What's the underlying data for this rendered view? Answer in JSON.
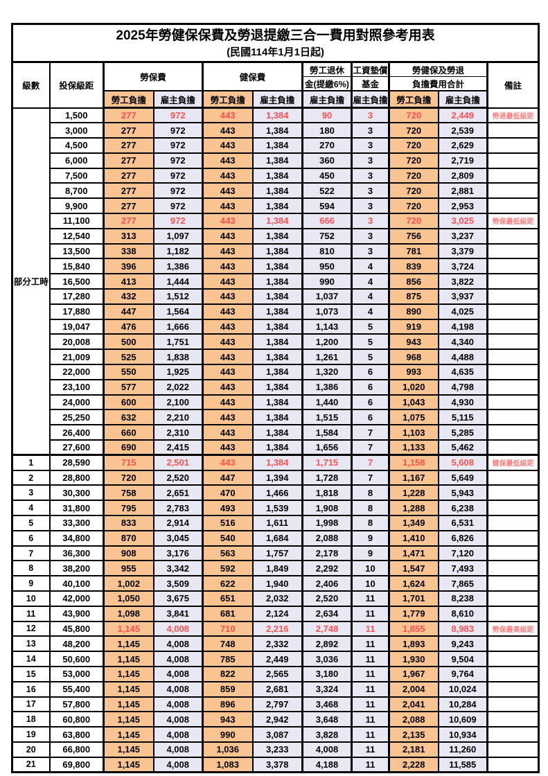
{
  "title": "2025年勞健保保費及勞退提繳三合一費用對照參考用表",
  "subtitle": "(民國114年1月1日起)",
  "header": {
    "level": "級數",
    "bracket": "投保級距",
    "labor_insurance": "勞保費",
    "health_insurance": "健保費",
    "pension_line1": "勞工退休",
    "pension_line2": "金(提繳6%)",
    "fund_line1": "工資墊償",
    "fund_line2": "基金",
    "total_line1": "勞健保及勞退",
    "total_line2": "負擔費用合計",
    "remark": "備註",
    "employee": "勞工負擔",
    "employer": "雇主負擔"
  },
  "colors": {
    "employee_bg": "#FAC492",
    "employer_bg": "#E8E8F5",
    "red_value": "#FF5050",
    "remark_red": "#FF8080",
    "border": "#000000"
  },
  "rows": [
    {
      "level": "部分工時",
      "level_rowspan": 23,
      "bracket": "1,500",
      "values": [
        "277",
        "972",
        "443",
        "1,384",
        "90",
        "3",
        "720",
        "2,449"
      ],
      "remark": "勞退最低級距",
      "red": true
    },
    {
      "bracket": "3,000",
      "values": [
        "277",
        "972",
        "443",
        "1,384",
        "180",
        "3",
        "720",
        "2,539"
      ]
    },
    {
      "bracket": "4,500",
      "values": [
        "277",
        "972",
        "443",
        "1,384",
        "270",
        "3",
        "720",
        "2,629"
      ]
    },
    {
      "bracket": "6,000",
      "values": [
        "277",
        "972",
        "443",
        "1,384",
        "360",
        "3",
        "720",
        "2,719"
      ]
    },
    {
      "bracket": "7,500",
      "values": [
        "277",
        "972",
        "443",
        "1,384",
        "450",
        "3",
        "720",
        "2,809"
      ]
    },
    {
      "bracket": "8,700",
      "values": [
        "277",
        "972",
        "443",
        "1,384",
        "522",
        "3",
        "720",
        "2,881"
      ]
    },
    {
      "bracket": "9,900",
      "values": [
        "277",
        "972",
        "443",
        "1,384",
        "594",
        "3",
        "720",
        "2,953"
      ]
    },
    {
      "bracket": "11,100",
      "values": [
        "277",
        "972",
        "443",
        "1,384",
        "666",
        "3",
        "720",
        "3,025"
      ],
      "remark": "勞保最低級距",
      "red": true
    },
    {
      "bracket": "12,540",
      "values": [
        "313",
        "1,097",
        "443",
        "1,384",
        "752",
        "3",
        "756",
        "3,237"
      ]
    },
    {
      "bracket": "13,500",
      "values": [
        "338",
        "1,182",
        "443",
        "1,384",
        "810",
        "3",
        "781",
        "3,379"
      ]
    },
    {
      "bracket": "15,840",
      "values": [
        "396",
        "1,386",
        "443",
        "1,384",
        "950",
        "4",
        "839",
        "3,724"
      ]
    },
    {
      "bracket": "16,500",
      "values": [
        "413",
        "1,444",
        "443",
        "1,384",
        "990",
        "4",
        "856",
        "3,822"
      ]
    },
    {
      "bracket": "17,280",
      "values": [
        "432",
        "1,512",
        "443",
        "1,384",
        "1,037",
        "4",
        "875",
        "3,937"
      ]
    },
    {
      "bracket": "17,880",
      "values": [
        "447",
        "1,564",
        "443",
        "1,384",
        "1,073",
        "4",
        "890",
        "4,025"
      ]
    },
    {
      "bracket": "19,047",
      "values": [
        "476",
        "1,666",
        "443",
        "1,384",
        "1,143",
        "5",
        "919",
        "4,198"
      ]
    },
    {
      "bracket": "20,008",
      "values": [
        "500",
        "1,751",
        "443",
        "1,384",
        "1,200",
        "5",
        "943",
        "4,340"
      ]
    },
    {
      "bracket": "21,009",
      "values": [
        "525",
        "1,838",
        "443",
        "1,384",
        "1,261",
        "5",
        "968",
        "4,488"
      ]
    },
    {
      "bracket": "22,000",
      "values": [
        "550",
        "1,925",
        "443",
        "1,384",
        "1,320",
        "6",
        "993",
        "4,635"
      ]
    },
    {
      "bracket": "23,100",
      "values": [
        "577",
        "2,022",
        "443",
        "1,384",
        "1,386",
        "6",
        "1,020",
        "4,798"
      ]
    },
    {
      "bracket": "24,000",
      "values": [
        "600",
        "2,100",
        "443",
        "1,384",
        "1,440",
        "6",
        "1,043",
        "4,930"
      ]
    },
    {
      "bracket": "25,250",
      "values": [
        "632",
        "2,210",
        "443",
        "1,384",
        "1,515",
        "6",
        "1,075",
        "5,115"
      ]
    },
    {
      "bracket": "26,400",
      "values": [
        "660",
        "2,310",
        "443",
        "1,384",
        "1,584",
        "7",
        "1,103",
        "5,285"
      ]
    },
    {
      "bracket": "27,600",
      "values": [
        "690",
        "2,415",
        "443",
        "1,384",
        "1,656",
        "7",
        "1,133",
        "5,462"
      ]
    },
    {
      "level": "1",
      "bracket": "28,590",
      "values": [
        "715",
        "2,501",
        "443",
        "1,384",
        "1,715",
        "7",
        "1,158",
        "5,608"
      ],
      "remark": "健保最低級距",
      "red": true,
      "group_start": true
    },
    {
      "level": "2",
      "bracket": "28,800",
      "values": [
        "720",
        "2,520",
        "447",
        "1,394",
        "1,728",
        "7",
        "1,167",
        "5,649"
      ]
    },
    {
      "level": "3",
      "bracket": "30,300",
      "values": [
        "758",
        "2,651",
        "470",
        "1,466",
        "1,818",
        "8",
        "1,228",
        "5,943"
      ]
    },
    {
      "level": "4",
      "bracket": "31,800",
      "values": [
        "795",
        "2,783",
        "493",
        "1,539",
        "1,908",
        "8",
        "1,288",
        "6,238"
      ]
    },
    {
      "level": "5",
      "bracket": "33,300",
      "values": [
        "833",
        "2,914",
        "516",
        "1,611",
        "1,998",
        "8",
        "1,349",
        "6,531"
      ]
    },
    {
      "level": "6",
      "bracket": "34,800",
      "values": [
        "870",
        "3,045",
        "540",
        "1,684",
        "2,088",
        "9",
        "1,410",
        "6,826"
      ]
    },
    {
      "level": "7",
      "bracket": "36,300",
      "values": [
        "908",
        "3,176",
        "563",
        "1,757",
        "2,178",
        "9",
        "1,471",
        "7,120"
      ]
    },
    {
      "level": "8",
      "bracket": "38,200",
      "values": [
        "955",
        "3,342",
        "592",
        "1,849",
        "2,292",
        "10",
        "1,547",
        "7,493"
      ]
    },
    {
      "level": "9",
      "bracket": "40,100",
      "values": [
        "1,002",
        "3,509",
        "622",
        "1,940",
        "2,406",
        "10",
        "1,624",
        "7,865"
      ]
    },
    {
      "level": "10",
      "bracket": "42,000",
      "values": [
        "1,050",
        "3,675",
        "651",
        "2,032",
        "2,520",
        "11",
        "1,701",
        "8,238"
      ]
    },
    {
      "level": "11",
      "bracket": "43,900",
      "values": [
        "1,098",
        "3,841",
        "681",
        "2,124",
        "2,634",
        "11",
        "1,779",
        "8,610"
      ]
    },
    {
      "level": "12",
      "bracket": "45,800",
      "values": [
        "1,145",
        "4,008",
        "710",
        "2,216",
        "2,748",
        "11",
        "1,855",
        "8,983"
      ],
      "remark": "勞保最高級距",
      "red": true
    },
    {
      "level": "13",
      "bracket": "48,200",
      "values": [
        "1,145",
        "4,008",
        "748",
        "2,332",
        "2,892",
        "11",
        "1,893",
        "9,243"
      ]
    },
    {
      "level": "14",
      "bracket": "50,600",
      "values": [
        "1,145",
        "4,008",
        "785",
        "2,449",
        "3,036",
        "11",
        "1,930",
        "9,504"
      ]
    },
    {
      "level": "15",
      "bracket": "53,000",
      "values": [
        "1,145",
        "4,008",
        "822",
        "2,565",
        "3,180",
        "11",
        "1,967",
        "9,764"
      ]
    },
    {
      "level": "16",
      "bracket": "55,400",
      "values": [
        "1,145",
        "4,008",
        "859",
        "2,681",
        "3,324",
        "11",
        "2,004",
        "10,024"
      ]
    },
    {
      "level": "17",
      "bracket": "57,800",
      "values": [
        "1,145",
        "4,008",
        "896",
        "2,797",
        "3,468",
        "11",
        "2,041",
        "10,284"
      ]
    },
    {
      "level": "18",
      "bracket": "60,800",
      "values": [
        "1,145",
        "4,008",
        "943",
        "2,942",
        "3,648",
        "11",
        "2,088",
        "10,609"
      ]
    },
    {
      "level": "19",
      "bracket": "63,800",
      "values": [
        "1,145",
        "4,008",
        "990",
        "3,087",
        "3,828",
        "11",
        "2,135",
        "10,934"
      ]
    },
    {
      "level": "20",
      "bracket": "66,800",
      "values": [
        "1,145",
        "4,008",
        "1,036",
        "3,233",
        "4,008",
        "11",
        "2,181",
        "11,260"
      ]
    },
    {
      "level": "21",
      "bracket": "69,800",
      "values": [
        "1,145",
        "4,008",
        "1,083",
        "3,378",
        "4,188",
        "11",
        "2,228",
        "11,585"
      ]
    }
  ],
  "value_column_names": [
    "labor-employee",
    "labor-employer",
    "health-employee",
    "health-employer",
    "pension-employer",
    "fund-employer",
    "total-employee",
    "total-employer"
  ]
}
